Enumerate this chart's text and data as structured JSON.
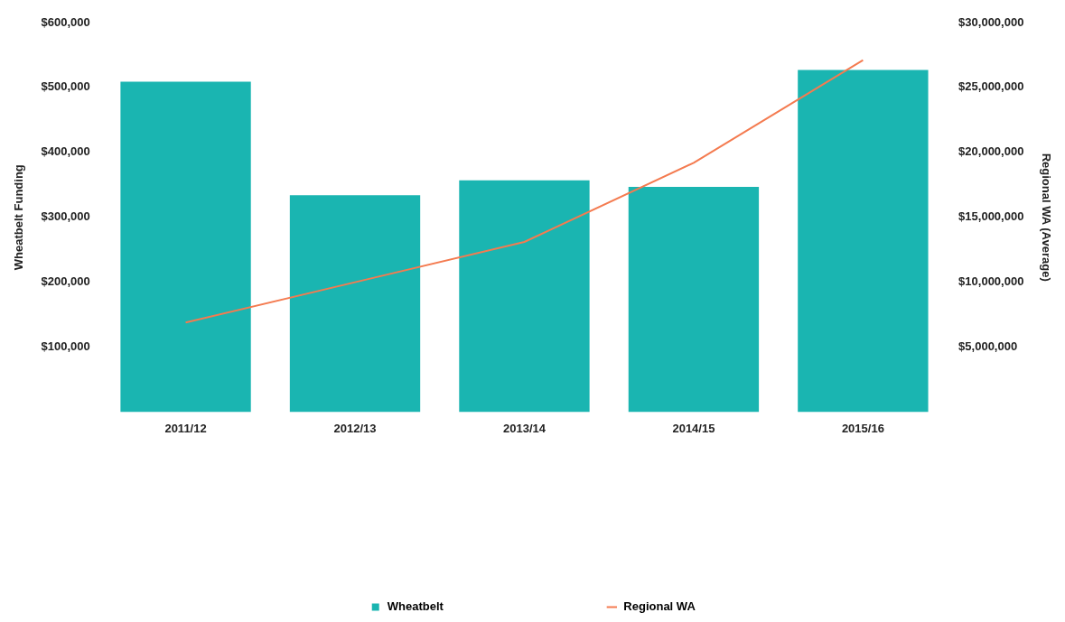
{
  "chart_data": {
    "type": "bar",
    "ylabel": "Wheatbelt Funding",
    "y2label": "Regional WA (Average)",
    "categories": [
      "2011/12",
      "2012/13",
      "2013/14",
      "2014/15",
      "2015/16"
    ],
    "series": [
      {
        "name": "Wheatbelt",
        "color": "#1ab5b1",
        "values": [
          509000,
          334000,
          357000,
          347000,
          527000
        ]
      },
      {
        "name": "Regional WA",
        "type": "line",
        "axis": "y2",
        "color": "#f47b50",
        "values": [
          6900000,
          10000000,
          13100000,
          19200000,
          27100000
        ]
      }
    ],
    "ylim": [
      0,
      600000
    ],
    "yticks": [
      {
        "value": 100000,
        "label": "$100,000"
      },
      {
        "value": 200000,
        "label": "$200,000"
      },
      {
        "value": 300000,
        "label": "$300,000"
      },
      {
        "value": 400000,
        "label": "$400,000"
      },
      {
        "value": 500000,
        "label": "$500,000"
      },
      {
        "value": 600000,
        "label": "$600,000"
      }
    ],
    "y2lim": [
      0,
      30000000
    ],
    "y2ticks": [
      {
        "value": 5000000,
        "label": "$5,000,000"
      },
      {
        "value": 10000000,
        "label": "$10,000,000"
      },
      {
        "value": 15000000,
        "label": "$15,000,000"
      },
      {
        "value": 20000000,
        "label": "$20,000,000"
      },
      {
        "value": 25000000,
        "label": "$25,000,000"
      },
      {
        "value": 30000000,
        "label": "$30,000,000"
      }
    ],
    "grid": false,
    "legend": "bottom",
    "marker": "none",
    "line_style": "solid"
  }
}
